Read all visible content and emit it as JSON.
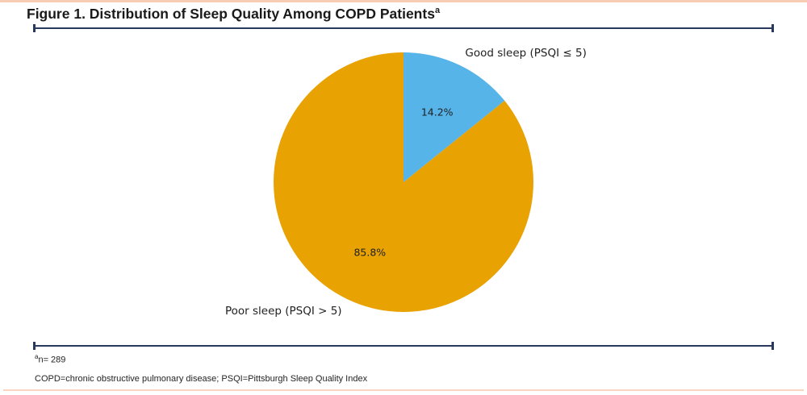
{
  "figure": {
    "title": "Figure 1. Distribution of Sleep Quality Among COPD Patients",
    "title_superscript": "a",
    "footnote_marker": "a",
    "footnote_sample_size": "n= 289",
    "abbreviations": "COPD=chronic obstructive pulmonary disease; PSQI=Pittsburgh Sleep Quality Index"
  },
  "colors": {
    "top_border": "#F8CCB5",
    "bottom_border": "#FAD3C1",
    "rule": "#27395C",
    "title_text": "#1A1A1A",
    "footnote_text": "#242424",
    "good_sleep_blue": "#56B4E9",
    "poor_sleep_orange": "#E8A202"
  },
  "chart_data": {
    "type": "pie",
    "title": "Distribution of Sleep Quality Among COPD Patients",
    "sample_size_note": "n= 289",
    "start_angle": "12 o'clock",
    "direction": "clockwise",
    "legend_position": "none (direct outside labels with inside percentage labels)",
    "slices": [
      {
        "label": "Good sleep (PSQI ≤ 5)",
        "value": 14.2,
        "display": "14.2%",
        "color": "#56B4E9"
      },
      {
        "label": "Poor sleep (PSQI > 5)",
        "value": 85.8,
        "display": "85.8%",
        "color": "#E8A202"
      }
    ]
  }
}
